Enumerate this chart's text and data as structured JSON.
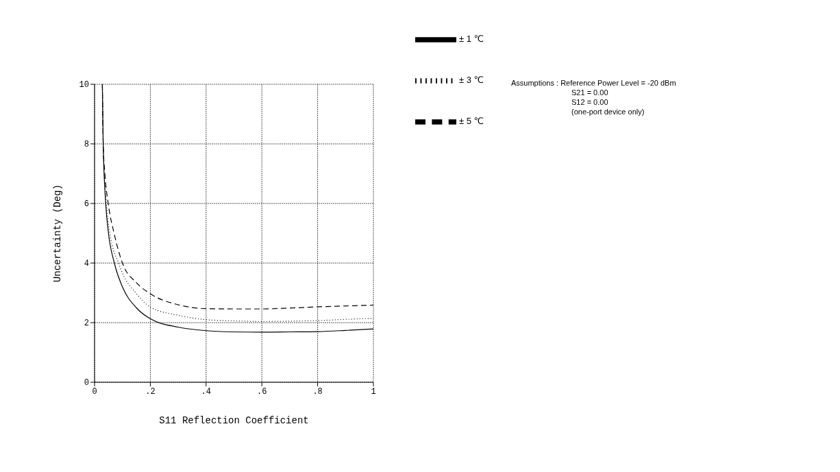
{
  "chart_data": {
    "type": "line",
    "xlabel": "S11 Reflection Coefficient",
    "ylabel": "Uncertainty (Deg)",
    "series": [
      {
        "name": "± 1 ℃",
        "color": "#000000",
        "line_style": "solid",
        "x": [
          0.028,
          0.031,
          0.04,
          0.05,
          0.071,
          0.1,
          0.15,
          0.2,
          0.3,
          0.4,
          0.5,
          0.6,
          0.7,
          0.8,
          0.9,
          1.0
        ],
        "values": [
          10,
          8,
          6,
          5,
          4,
          3.2,
          2.5,
          2.13,
          1.85,
          1.73,
          1.69,
          1.68,
          1.69,
          1.7,
          1.74,
          1.79
        ]
      },
      {
        "name": "± 3 ℃",
        "color": "#000000",
        "line_style": "dotted",
        "x": [
          0.028,
          0.031,
          0.042,
          0.055,
          0.086,
          0.1,
          0.15,
          0.2,
          0.3,
          0.4,
          0.5,
          0.6,
          0.7,
          0.8,
          0.9,
          1.0
        ],
        "values": [
          10,
          8,
          6,
          5,
          4,
          3.66,
          2.98,
          2.52,
          2.25,
          2.1,
          2.06,
          2.04,
          2.05,
          2.07,
          2.11,
          2.15
        ]
      },
      {
        "name": "± 5 ℃",
        "color": "#000000",
        "line_style": "dashed",
        "x": [
          0.028,
          0.031,
          0.037,
          0.049,
          0.07,
          0.1,
          0.15,
          0.2,
          0.3,
          0.4,
          0.5,
          0.6,
          0.7,
          0.8,
          0.9,
          1.0
        ],
        "values": [
          10,
          8,
          7,
          6,
          5,
          4,
          3.34,
          2.97,
          2.6,
          2.47,
          2.46,
          2.46,
          2.49,
          2.53,
          2.56,
          2.59
        ]
      }
    ],
    "xlim": [
      0,
      1
    ],
    "xticks": [
      0,
      {
        "value": 0.2,
        "label": ".2"
      },
      {
        "value": 0.4,
        "label": ".4"
      },
      {
        "value": 0.6,
        "label": ".6"
      },
      {
        "value": 0.8,
        "label": ".8"
      },
      1
    ],
    "ylim": [
      0,
      10
    ],
    "yticks": [
      0,
      2,
      4,
      6,
      8,
      10
    ],
    "grid": true,
    "legend": "top right",
    "annotations": [
      "Assumptions : Reference Power Level = -20 dBm",
      "S21 = 0.00",
      "S12 = 0.00",
      "(one-port device only)"
    ]
  }
}
